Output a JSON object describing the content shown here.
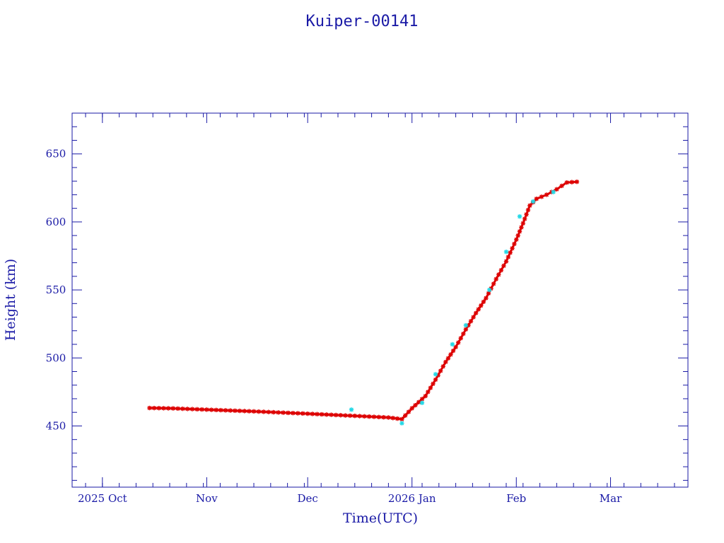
{
  "chart_data": {
    "type": "scatter",
    "title": "Kuiper-00141",
    "xlabel": "Time(UTC)",
    "ylabel": "Height (km)",
    "xlim": [
      "2025-09-22",
      "2026-03-24"
    ],
    "ylim": [
      405,
      680
    ],
    "x_ticks": [
      {
        "date": "2025-10-01",
        "label": "2025 Oct"
      },
      {
        "date": "2025-11-01",
        "label": "Nov"
      },
      {
        "date": "2025-12-01",
        "label": "Dec"
      },
      {
        "date": "2026-01-01",
        "label": "2026 Jan"
      },
      {
        "date": "2026-02-01",
        "label": "Feb"
      },
      {
        "date": "2026-03-01",
        "label": "Mar"
      }
    ],
    "y_ticks": [
      450,
      500,
      550,
      600,
      650
    ],
    "grid": false,
    "series": [
      {
        "color": "#dd0000",
        "marker": "asterisk",
        "points": [
          [
            "2025-10-15",
            463.2
          ],
          [
            "2025-10-22",
            462.9
          ],
          [
            "2025-11-01",
            462.0
          ],
          [
            "2025-11-15",
            460.7
          ],
          [
            "2025-12-01",
            459.0
          ],
          [
            "2025-12-15",
            457.4
          ],
          [
            "2025-12-25",
            456.2
          ],
          [
            "2025-12-29",
            455.0
          ],
          [
            "2026-01-01",
            463.0
          ],
          [
            "2026-01-05",
            472.0
          ],
          [
            "2026-01-08",
            484.0
          ],
          [
            "2026-01-11",
            497.0
          ],
          [
            "2026-01-14",
            508.0
          ],
          [
            "2026-01-17",
            521.0
          ],
          [
            "2026-01-20",
            533.0
          ],
          [
            "2026-01-23",
            544.0
          ],
          [
            "2026-01-26",
            558.0
          ],
          [
            "2026-01-29",
            571.0
          ],
          [
            "2026-02-01",
            587.0
          ],
          [
            "2026-02-03",
            599.0
          ],
          [
            "2026-02-05",
            612.0
          ],
          [
            "2026-02-07",
            617.0
          ],
          [
            "2026-02-10",
            620.0
          ],
          [
            "2026-02-13",
            624.0
          ],
          [
            "2026-02-16",
            629.0
          ],
          [
            "2026-02-19",
            629.5
          ]
        ]
      },
      {
        "color": "#22d8e6",
        "marker": "asterisk",
        "points": [
          [
            "2025-12-14",
            462.0
          ],
          [
            "2025-12-29",
            452.0
          ],
          [
            "2026-01-04",
            467.0
          ],
          [
            "2026-01-08",
            488.0
          ],
          [
            "2026-01-13",
            510.0
          ],
          [
            "2026-01-17",
            524.0
          ],
          [
            "2026-01-24",
            550.0
          ],
          [
            "2026-01-29",
            578.0
          ],
          [
            "2026-02-02",
            604.0
          ],
          [
            "2026-02-06",
            615.0
          ],
          [
            "2026-02-12",
            622.0
          ]
        ]
      }
    ]
  }
}
